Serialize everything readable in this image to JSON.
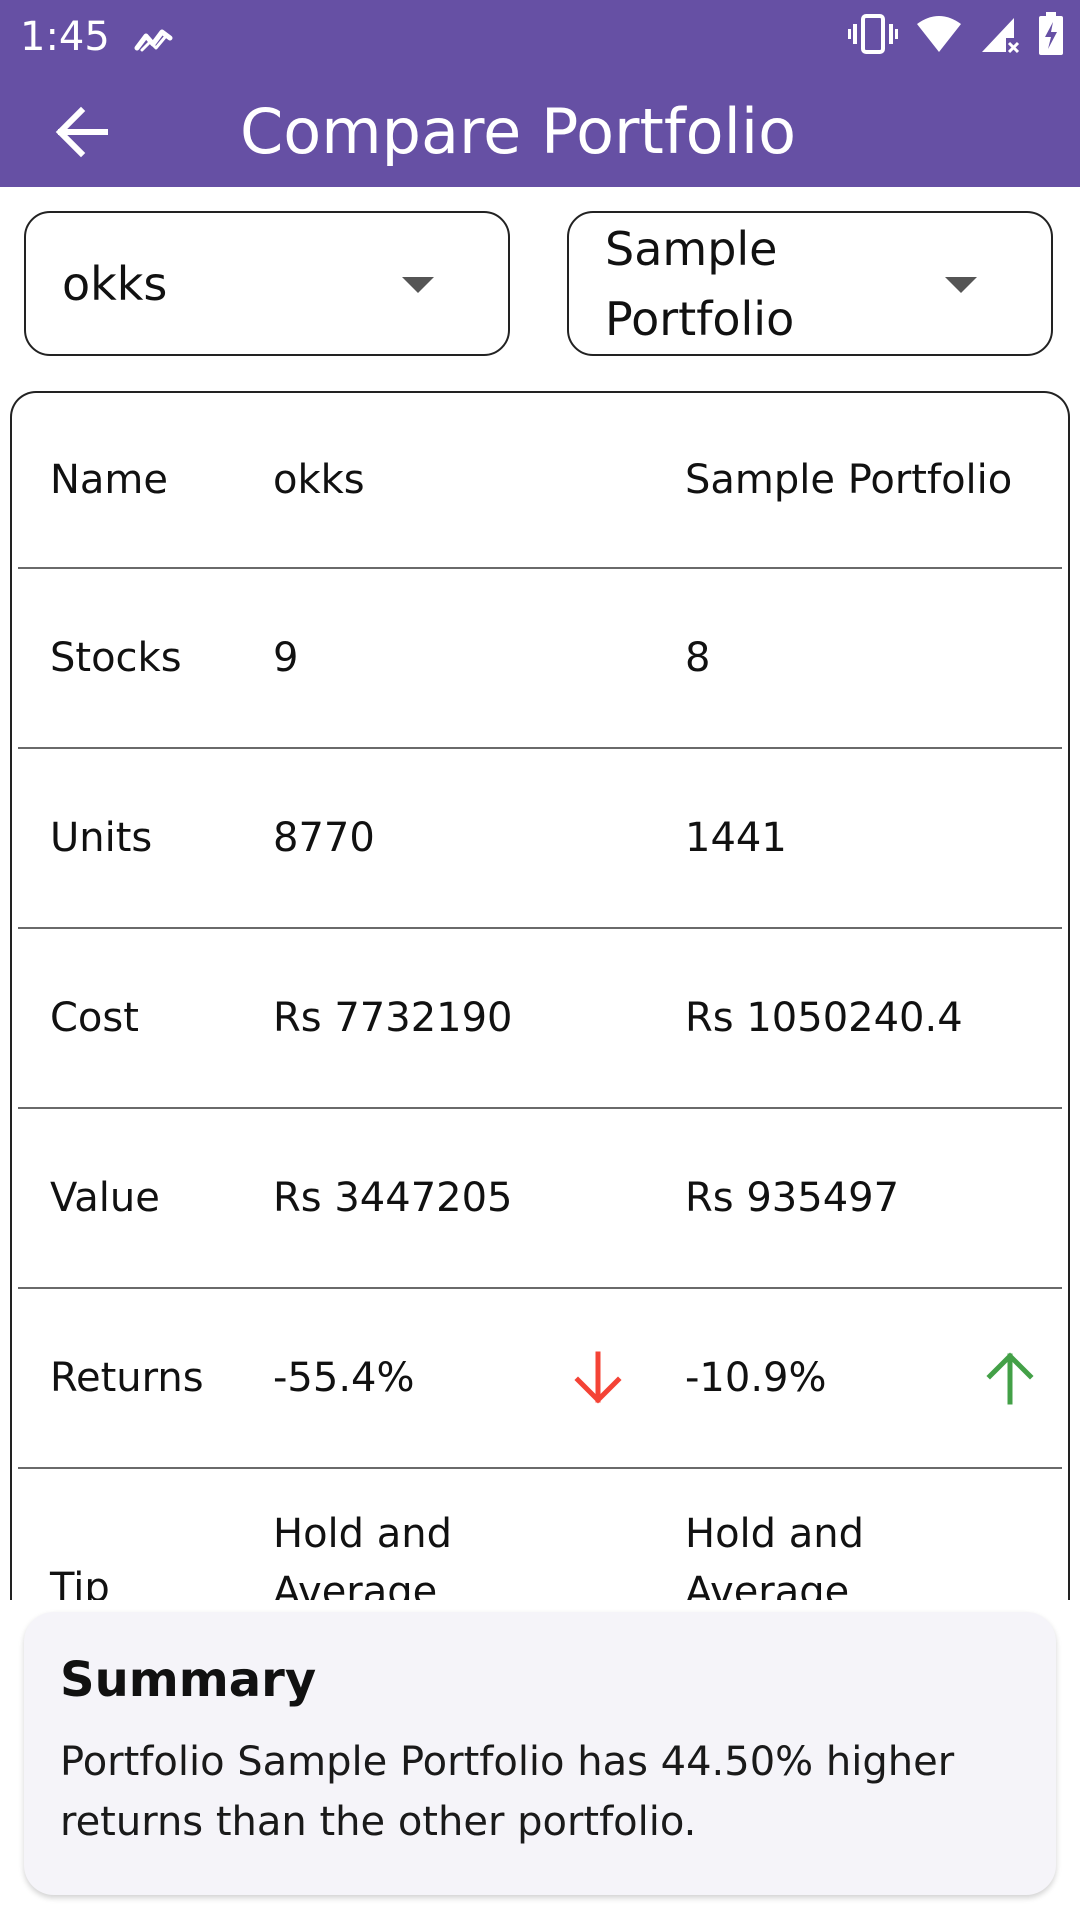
{
  "status_bar": {
    "time": "1:45",
    "icons": [
      "trend-icon",
      "vibrate-icon",
      "wifi-icon",
      "signal-icon",
      "battery-charging-icon"
    ]
  },
  "app_bar": {
    "title": "Compare Portfolio",
    "back_icon": "arrow-back-icon"
  },
  "selectors": {
    "left": {
      "value": "okks"
    },
    "right": {
      "value": "Sample Portfolio"
    }
  },
  "table": {
    "rows": [
      {
        "label": "Name",
        "left": "okks",
        "right": "Sample Portfolio"
      },
      {
        "label": "Stocks",
        "left": "9",
        "right": "8"
      },
      {
        "label": "Units",
        "left": "8770",
        "right": "1441"
      },
      {
        "label": "Cost",
        "left": "Rs 7732190",
        "right": "Rs 1050240.4"
      },
      {
        "label": "Value",
        "left": "Rs 3447205",
        "right": "Rs 935497"
      },
      {
        "label": "Returns",
        "left": "-55.4%",
        "right": "-10.9%",
        "left_trend": "down",
        "right_trend": "up"
      },
      {
        "label": "Tip",
        "left": "Hold and Average",
        "right": "Hold and Average"
      }
    ]
  },
  "colors": {
    "primary": "#6650a4",
    "down": "#f44336",
    "up": "#43a047",
    "summary_bg": "#f5f4f9"
  },
  "summary": {
    "heading": "Summary",
    "text": "Portfolio Sample Portfolio has 44.50% higher returns than the other portfolio."
  }
}
